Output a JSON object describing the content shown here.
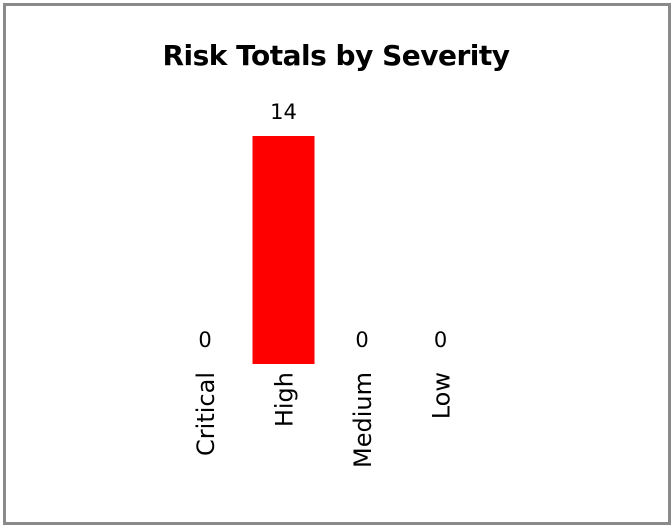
{
  "chart_data": {
    "type": "bar",
    "title": "Risk Totals by Severity",
    "categories": [
      "Critical",
      "High",
      "Medium",
      "Low"
    ],
    "values": [
      0,
      14,
      0,
      0
    ],
    "colors": [
      "#ff0000",
      "#ff0000",
      "#ff0000",
      "#ff0000"
    ],
    "xlabel": "",
    "ylabel": "",
    "ylim": [
      0,
      14
    ],
    "grid": false,
    "legend": "none",
    "data_labels": true
  }
}
